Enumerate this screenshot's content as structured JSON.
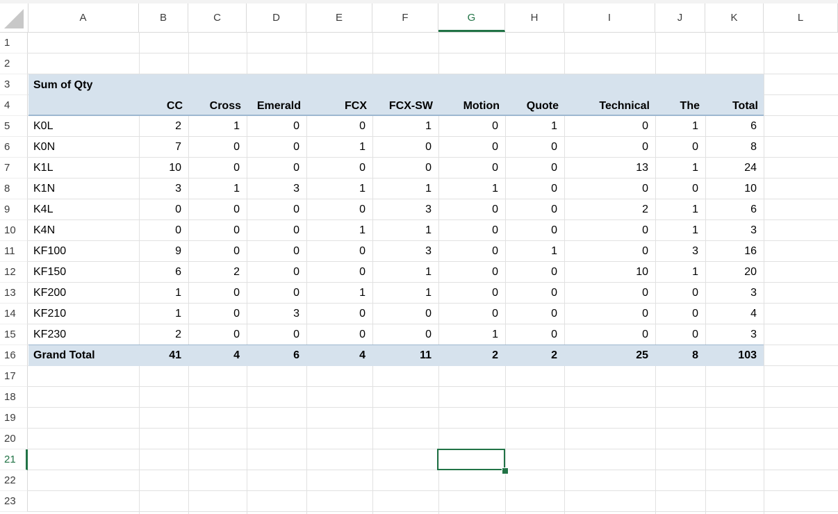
{
  "columns": [
    "A",
    "B",
    "C",
    "D",
    "E",
    "F",
    "G",
    "H",
    "I",
    "J",
    "K",
    "L"
  ],
  "active_column": "G",
  "rows": [
    "1",
    "2",
    "3",
    "4",
    "5",
    "6",
    "7",
    "8",
    "9",
    "10",
    "11",
    "12",
    "13",
    "14",
    "15",
    "16",
    "17",
    "18",
    "19",
    "20",
    "21",
    "22",
    "23"
  ],
  "active_row": "21",
  "pivot": {
    "title": "Sum of Qty",
    "headers": [
      "CC",
      "Cross",
      "Emerald",
      "FCX",
      "FCX-SW",
      "Motion",
      "Quote",
      "Technical",
      "The",
      "Total"
    ],
    "rows": [
      {
        "label": "K0L",
        "values": [
          "2",
          "1",
          "0",
          "0",
          "1",
          "0",
          "1",
          "0",
          "1",
          "6"
        ]
      },
      {
        "label": "K0N",
        "values": [
          "7",
          "0",
          "0",
          "1",
          "0",
          "0",
          "0",
          "0",
          "0",
          "8"
        ]
      },
      {
        "label": "K1L",
        "values": [
          "10",
          "0",
          "0",
          "0",
          "0",
          "0",
          "0",
          "13",
          "1",
          "24"
        ]
      },
      {
        "label": "K1N",
        "values": [
          "3",
          "1",
          "3",
          "1",
          "1",
          "1",
          "0",
          "0",
          "0",
          "10"
        ]
      },
      {
        "label": "K4L",
        "values": [
          "0",
          "0",
          "0",
          "0",
          "3",
          "0",
          "0",
          "2",
          "1",
          "6"
        ]
      },
      {
        "label": "K4N",
        "values": [
          "0",
          "0",
          "0",
          "1",
          "1",
          "0",
          "0",
          "0",
          "1",
          "3"
        ]
      },
      {
        "label": "KF100",
        "values": [
          "9",
          "0",
          "0",
          "0",
          "3",
          "0",
          "1",
          "0",
          "3",
          "16"
        ]
      },
      {
        "label": "KF150",
        "values": [
          "6",
          "2",
          "0",
          "0",
          "1",
          "0",
          "0",
          "10",
          "1",
          "20"
        ]
      },
      {
        "label": "KF200",
        "values": [
          "1",
          "0",
          "0",
          "1",
          "1",
          "0",
          "0",
          "0",
          "0",
          "3"
        ]
      },
      {
        "label": "KF210",
        "values": [
          "1",
          "0",
          "3",
          "0",
          "0",
          "0",
          "0",
          "0",
          "0",
          "4"
        ]
      },
      {
        "label": "KF230",
        "values": [
          "2",
          "0",
          "0",
          "0",
          "0",
          "1",
          "0",
          "0",
          "0",
          "3"
        ]
      }
    ],
    "grand_total": {
      "label": "Grand Total",
      "values": [
        "41",
        "4",
        "6",
        "4",
        "11",
        "2",
        "2",
        "25",
        "8",
        "103"
      ]
    }
  },
  "colors": {
    "band": "#d6e2ed",
    "accent": "#217346",
    "grid": "#e1e1e1"
  }
}
